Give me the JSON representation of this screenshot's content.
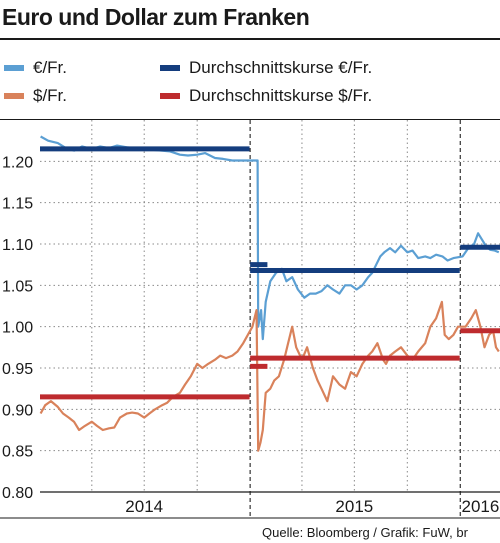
{
  "title": "Euro und Dollar zum Franken",
  "source": "Quelle: Bloomberg / Grafik: FuW, br",
  "colors": {
    "eur": "#5b9fd3",
    "usd": "#d9825b",
    "eur_avg": "#143d7e",
    "usd_avg": "#be2b2e"
  },
  "legend": [
    {
      "label": "€/Fr.",
      "color": "#5b9fd3"
    },
    {
      "label": "$/Fr.",
      "color": "#d9825b"
    },
    {
      "label": "Durchschnittskurse €/Fr.",
      "color": "#143d7e"
    },
    {
      "label": "Durchschnittskurse $/Fr.",
      "color": "#be2b2e"
    }
  ],
  "chart_data": {
    "type": "line",
    "title": "Euro und Dollar zum Franken",
    "xlabel": "",
    "ylabel": "",
    "ylim": [
      0.8,
      1.25
    ],
    "xlim": [
      "2014-01-01",
      "2016-03-10"
    ],
    "yticks": [
      0.8,
      0.85,
      0.9,
      0.95,
      1.0,
      1.05,
      1.1,
      1.15,
      1.2
    ],
    "ytick_labels": [
      "0.80",
      "0.85",
      "0.90",
      "0.95",
      "1.00",
      "1.05",
      "1.10",
      "1.15",
      "1.20"
    ],
    "year_labels": [
      {
        "label": "2014",
        "date": "2014-07-01"
      },
      {
        "label": "2015",
        "date": "2015-07-01"
      },
      {
        "label": "2016",
        "date": "2016-02-05"
      }
    ],
    "year_boundaries": [
      "2015-01-01",
      "2016-01-01"
    ],
    "minor_gridlines": [
      "2014-04-01",
      "2014-07-01",
      "2014-10-01",
      "2015-04-01",
      "2015-07-01",
      "2015-10-01"
    ],
    "grid": true,
    "series": [
      {
        "name": "€/Fr.",
        "color": "#5b9fd3",
        "points": [
          [
            "2014-01-02",
            1.23
          ],
          [
            "2014-01-15",
            1.225
          ],
          [
            "2014-02-01",
            1.222
          ],
          [
            "2014-02-15",
            1.216
          ],
          [
            "2014-03-01",
            1.213
          ],
          [
            "2014-03-15",
            1.218
          ],
          [
            "2014-04-01",
            1.215
          ],
          [
            "2014-04-15",
            1.218
          ],
          [
            "2014-05-01",
            1.216
          ],
          [
            "2014-05-15",
            1.219
          ],
          [
            "2014-06-01",
            1.217
          ],
          [
            "2014-06-15",
            1.216
          ],
          [
            "2014-07-01",
            1.215
          ],
          [
            "2014-07-15",
            1.214
          ],
          [
            "2014-08-01",
            1.213
          ],
          [
            "2014-08-15",
            1.212
          ],
          [
            "2014-09-01",
            1.208
          ],
          [
            "2014-09-15",
            1.207
          ],
          [
            "2014-10-01",
            1.208
          ],
          [
            "2014-10-15",
            1.21
          ],
          [
            "2014-11-01",
            1.204
          ],
          [
            "2014-11-15",
            1.203
          ],
          [
            "2014-12-01",
            1.201
          ],
          [
            "2014-12-15",
            1.201
          ],
          [
            "2015-01-14",
            1.201
          ],
          [
            "2015-01-15",
            1.0
          ],
          [
            "2015-01-20",
            1.02
          ],
          [
            "2015-01-23",
            0.985
          ],
          [
            "2015-01-28",
            1.03
          ],
          [
            "2015-02-05",
            1.055
          ],
          [
            "2015-02-15",
            1.065
          ],
          [
            "2015-02-25",
            1.07
          ],
          [
            "2015-03-05",
            1.055
          ],
          [
            "2015-03-15",
            1.06
          ],
          [
            "2015-03-25",
            1.045
          ],
          [
            "2015-04-05",
            1.035
          ],
          [
            "2015-04-15",
            1.04
          ],
          [
            "2015-04-25",
            1.04
          ],
          [
            "2015-05-05",
            1.043
          ],
          [
            "2015-05-15",
            1.05
          ],
          [
            "2015-05-25",
            1.045
          ],
          [
            "2015-06-05",
            1.04
          ],
          [
            "2015-06-15",
            1.05
          ],
          [
            "2015-06-25",
            1.05
          ],
          [
            "2015-07-05",
            1.045
          ],
          [
            "2015-07-15",
            1.05
          ],
          [
            "2015-07-25",
            1.06
          ],
          [
            "2015-08-01",
            1.065
          ],
          [
            "2015-08-08",
            1.075
          ],
          [
            "2015-08-15",
            1.085
          ],
          [
            "2015-08-22",
            1.09
          ],
          [
            "2015-09-01",
            1.095
          ],
          [
            "2015-09-10",
            1.09
          ],
          [
            "2015-09-20",
            1.098
          ],
          [
            "2015-10-01",
            1.09
          ],
          [
            "2015-10-10",
            1.092
          ],
          [
            "2015-10-20",
            1.083
          ],
          [
            "2015-11-01",
            1.085
          ],
          [
            "2015-11-10",
            1.083
          ],
          [
            "2015-11-20",
            1.087
          ],
          [
            "2015-12-01",
            1.085
          ],
          [
            "2015-12-10",
            1.08
          ],
          [
            "2015-12-20",
            1.083
          ],
          [
            "2016-01-05",
            1.085
          ],
          [
            "2016-01-15",
            1.095
          ],
          [
            "2016-01-25",
            1.1
          ],
          [
            "2016-02-01",
            1.113
          ],
          [
            "2016-02-08",
            1.105
          ],
          [
            "2016-02-15",
            1.097
          ],
          [
            "2016-02-22",
            1.093
          ],
          [
            "2016-03-01",
            1.092
          ],
          [
            "2016-03-08",
            1.09
          ]
        ]
      },
      {
        "name": "$/Fr.",
        "color": "#d9825b",
        "points": [
          [
            "2014-01-02",
            0.895
          ],
          [
            "2014-01-10",
            0.905
          ],
          [
            "2014-01-20",
            0.91
          ],
          [
            "2014-02-01",
            0.903
          ],
          [
            "2014-02-10",
            0.895
          ],
          [
            "2014-02-20",
            0.89
          ],
          [
            "2014-03-01",
            0.885
          ],
          [
            "2014-03-10",
            0.875
          ],
          [
            "2014-03-20",
            0.88
          ],
          [
            "2014-04-01",
            0.885
          ],
          [
            "2014-04-10",
            0.88
          ],
          [
            "2014-04-20",
            0.875
          ],
          [
            "2014-05-01",
            0.877
          ],
          [
            "2014-05-10",
            0.878
          ],
          [
            "2014-05-20",
            0.89
          ],
          [
            "2014-06-01",
            0.895
          ],
          [
            "2014-06-10",
            0.896
          ],
          [
            "2014-06-20",
            0.895
          ],
          [
            "2014-07-01",
            0.89
          ],
          [
            "2014-07-10",
            0.895
          ],
          [
            "2014-07-20",
            0.9
          ],
          [
            "2014-08-01",
            0.905
          ],
          [
            "2014-08-10",
            0.908
          ],
          [
            "2014-08-20",
            0.915
          ],
          [
            "2014-09-01",
            0.92
          ],
          [
            "2014-09-10",
            0.93
          ],
          [
            "2014-09-20",
            0.94
          ],
          [
            "2014-10-01",
            0.955
          ],
          [
            "2014-10-10",
            0.95
          ],
          [
            "2014-10-20",
            0.955
          ],
          [
            "2014-11-01",
            0.96
          ],
          [
            "2014-11-10",
            0.965
          ],
          [
            "2014-11-20",
            0.962
          ],
          [
            "2014-12-01",
            0.965
          ],
          [
            "2014-12-10",
            0.97
          ],
          [
            "2014-12-20",
            0.98
          ],
          [
            "2015-01-05",
            1.0
          ],
          [
            "2015-01-12",
            1.02
          ],
          [
            "2015-01-15",
            0.85
          ],
          [
            "2015-01-19",
            0.86
          ],
          [
            "2015-01-23",
            0.875
          ],
          [
            "2015-01-28",
            0.92
          ],
          [
            "2015-02-05",
            0.925
          ],
          [
            "2015-02-12",
            0.935
          ],
          [
            "2015-02-20",
            0.94
          ],
          [
            "2015-03-01",
            0.96
          ],
          [
            "2015-03-08",
            0.98
          ],
          [
            "2015-03-15",
            1.0
          ],
          [
            "2015-03-22",
            0.975
          ],
          [
            "2015-04-01",
            0.96
          ],
          [
            "2015-04-10",
            0.975
          ],
          [
            "2015-04-20",
            0.95
          ],
          [
            "2015-04-28",
            0.935
          ],
          [
            "2015-05-05",
            0.925
          ],
          [
            "2015-05-15",
            0.91
          ],
          [
            "2015-05-25",
            0.94
          ],
          [
            "2015-06-05",
            0.93
          ],
          [
            "2015-06-15",
            0.925
          ],
          [
            "2015-06-25",
            0.945
          ],
          [
            "2015-07-05",
            0.94
          ],
          [
            "2015-07-15",
            0.955
          ],
          [
            "2015-07-25",
            0.965
          ],
          [
            "2015-08-01",
            0.97
          ],
          [
            "2015-08-10",
            0.98
          ],
          [
            "2015-08-20",
            0.96
          ],
          [
            "2015-08-25",
            0.955
          ],
          [
            "2015-09-01",
            0.965
          ],
          [
            "2015-09-10",
            0.97
          ],
          [
            "2015-09-20",
            0.975
          ],
          [
            "2015-10-01",
            0.965
          ],
          [
            "2015-10-10",
            0.96
          ],
          [
            "2015-10-20",
            0.97
          ],
          [
            "2015-11-01",
            0.98
          ],
          [
            "2015-11-10",
            1.0
          ],
          [
            "2015-11-20",
            1.01
          ],
          [
            "2015-11-30",
            1.03
          ],
          [
            "2015-12-05",
            0.99
          ],
          [
            "2015-12-12",
            0.985
          ],
          [
            "2015-12-20",
            0.99
          ],
          [
            "2015-12-28",
            1.0
          ],
          [
            "2016-01-10",
            1.0
          ],
          [
            "2016-01-20",
            1.01
          ],
          [
            "2016-01-28",
            1.02
          ],
          [
            "2016-02-05",
            1.0
          ],
          [
            "2016-02-12",
            0.975
          ],
          [
            "2016-02-20",
            0.99
          ],
          [
            "2016-02-27",
            0.995
          ],
          [
            "2016-03-03",
            0.975
          ],
          [
            "2016-03-08",
            0.97
          ]
        ]
      }
    ],
    "averages": [
      {
        "series": "€/Fr.",
        "color": "#143d7e",
        "from": "2014-01-01",
        "to": "2014-12-31",
        "value": 1.215
      },
      {
        "series": "€/Fr.",
        "color": "#143d7e",
        "from": "2015-01-01",
        "to": "2015-01-31",
        "value": 1.075
      },
      {
        "series": "€/Fr.",
        "color": "#143d7e",
        "from": "2015-01-01",
        "to": "2015-12-31",
        "value": 1.068
      },
      {
        "series": "€/Fr.",
        "color": "#143d7e",
        "from": "2016-01-01",
        "to": "2016-03-10",
        "value": 1.096
      },
      {
        "series": "$/Fr.",
        "color": "#be2b2e",
        "from": "2014-01-01",
        "to": "2014-12-31",
        "value": 0.915
      },
      {
        "series": "$/Fr.",
        "color": "#be2b2e",
        "from": "2015-01-01",
        "to": "2015-01-31",
        "value": 0.952
      },
      {
        "series": "$/Fr.",
        "color": "#be2b2e",
        "from": "2015-01-01",
        "to": "2015-12-31",
        "value": 0.962
      },
      {
        "series": "$/Fr.",
        "color": "#be2b2e",
        "from": "2016-01-01",
        "to": "2016-03-10",
        "value": 0.995
      }
    ]
  }
}
